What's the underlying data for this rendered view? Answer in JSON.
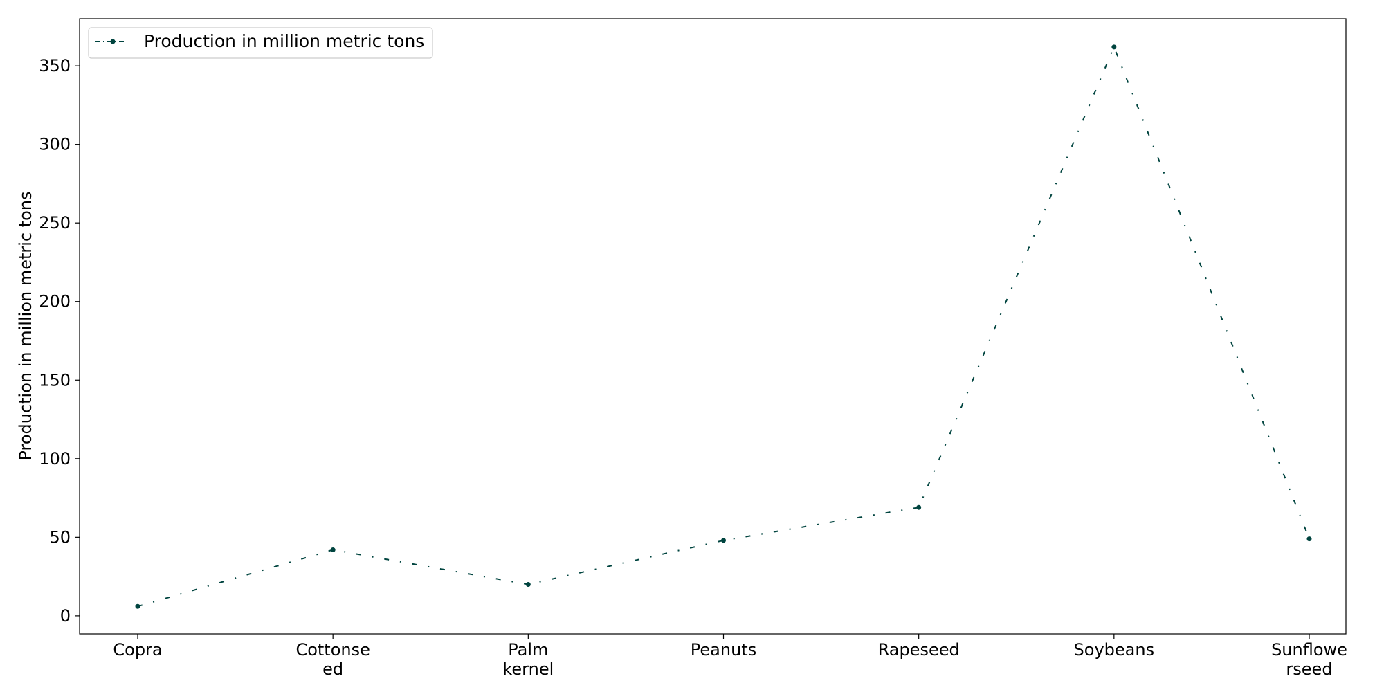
{
  "chart_data": {
    "type": "line",
    "categories": [
      "Copra",
      "Cottonseed",
      "Palm kernel",
      "Peanuts",
      "Rapeseed",
      "Soybeans",
      "Sunflowerseed"
    ],
    "category_tick_lines": [
      [
        "Copra"
      ],
      [
        "Cottonse",
        "ed"
      ],
      [
        "Palm",
        "kernel"
      ],
      [
        "Peanuts"
      ],
      [
        "Rapeseed"
      ],
      [
        "Soybeans"
      ],
      [
        "Sunflowe",
        "rseed"
      ]
    ],
    "series": [
      {
        "name": "Production in million metric tons",
        "values": [
          6,
          42,
          20,
          48,
          69,
          362,
          49
        ]
      }
    ],
    "title": "",
    "xlabel": "",
    "ylabel": "Production in million metric tons",
    "ylim": [
      -11.5,
      380
    ],
    "yticks": [
      0,
      50,
      100,
      150,
      200,
      250,
      300,
      350
    ],
    "grid": false,
    "legend_position": "top-left",
    "line_style": "dash-dot",
    "colors": {
      "series": "#00443f",
      "axes": "#000000",
      "legend_border": "#cccccc"
    }
  }
}
